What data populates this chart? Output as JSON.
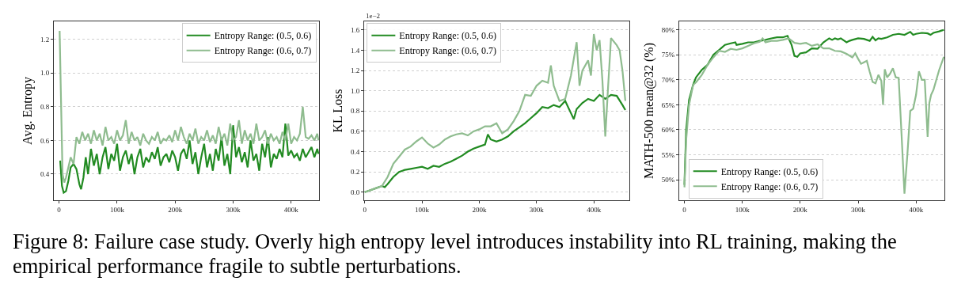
{
  "chart_data": [
    {
      "type": "line",
      "ylabel": "Avg. Entropy",
      "xlim": [
        -9,
        448
      ],
      "xticks": [
        {
          "value": 0,
          "label": "0"
        },
        {
          "value": 100,
          "label": "100k"
        },
        {
          "value": 200,
          "label": "200k"
        },
        {
          "value": 300,
          "label": "300k"
        },
        {
          "value": 400,
          "label": "400k"
        }
      ],
      "ylim": [
        0.245,
        1.306
      ],
      "yticks": [
        0.4,
        0.6,
        0.8,
        {
          "value": 1,
          "label": "1.0"
        },
        1.2
      ],
      "grid": "y",
      "legend": "top right",
      "series": [
        {
          "name": "Entropy Range: (0.5, 0.6)",
          "color": "#228b22",
          "x": [
            2,
            5,
            8,
            12,
            16,
            20,
            25,
            30,
            35,
            38,
            42,
            46,
            50,
            55,
            60,
            65,
            70,
            75,
            80,
            85,
            90,
            95,
            100,
            105,
            110,
            115,
            120,
            125,
            130,
            135,
            140,
            145,
            150,
            155,
            160,
            165,
            170,
            175,
            180,
            185,
            190,
            195,
            200,
            205,
            210,
            215,
            220,
            225,
            230,
            235,
            240,
            245,
            250,
            255,
            260,
            265,
            270,
            275,
            280,
            285,
            290,
            295,
            300,
            305,
            310,
            315,
            320,
            325,
            330,
            335,
            340,
            345,
            350,
            355,
            360,
            365,
            370,
            375,
            380,
            385,
            390,
            395,
            400,
            405,
            410,
            415,
            420,
            425,
            430,
            435,
            440,
            445,
            447
          ],
          "values": [
            0.48,
            0.33,
            0.29,
            0.3,
            0.36,
            0.44,
            0.46,
            0.43,
            0.34,
            0.31,
            0.38,
            0.5,
            0.4,
            0.55,
            0.45,
            0.52,
            0.4,
            0.5,
            0.56,
            0.43,
            0.52,
            0.48,
            0.58,
            0.42,
            0.5,
            0.54,
            0.46,
            0.52,
            0.4,
            0.5,
            0.55,
            0.44,
            0.5,
            0.47,
            0.53,
            0.49,
            0.56,
            0.45,
            0.5,
            0.52,
            0.47,
            0.54,
            0.5,
            0.42,
            0.52,
            0.55,
            0.49,
            0.6,
            0.46,
            0.53,
            0.4,
            0.5,
            0.58,
            0.44,
            0.52,
            0.42,
            0.55,
            0.48,
            0.62,
            0.45,
            0.52,
            0.4,
            0.69,
            0.5,
            0.56,
            0.47,
            0.53,
            0.44,
            0.6,
            0.48,
            0.52,
            0.42,
            0.58,
            0.5,
            0.62,
            0.44,
            0.52,
            0.49,
            0.55,
            0.5,
            0.7,
            0.51,
            0.54,
            0.5,
            0.52,
            0.48,
            0.55,
            0.5,
            0.53,
            0.56,
            0.5,
            0.55,
            0.52
          ]
        },
        {
          "name": "Entropy Range: (0.6, 0.7)",
          "color": "#8fbc8f",
          "x": [
            1,
            3,
            6,
            9,
            12,
            16,
            20,
            25,
            30,
            35,
            40,
            45,
            50,
            55,
            60,
            65,
            70,
            75,
            80,
            85,
            90,
            95,
            100,
            105,
            110,
            115,
            120,
            125,
            130,
            135,
            140,
            145,
            150,
            155,
            160,
            165,
            170,
            175,
            180,
            185,
            190,
            195,
            200,
            205,
            210,
            215,
            220,
            225,
            230,
            235,
            240,
            245,
            250,
            255,
            260,
            265,
            270,
            275,
            280,
            285,
            290,
            295,
            300,
            305,
            310,
            315,
            320,
            325,
            330,
            335,
            340,
            345,
            350,
            355,
            360,
            365,
            370,
            375,
            380,
            385,
            390,
            395,
            400,
            405,
            410,
            415,
            420,
            425,
            430,
            435,
            440,
            445,
            447
          ],
          "values": [
            1.25,
            0.9,
            0.4,
            0.35,
            0.38,
            0.44,
            0.5,
            0.46,
            0.62,
            0.58,
            0.65,
            0.6,
            0.64,
            0.58,
            0.66,
            0.6,
            0.64,
            0.57,
            0.68,
            0.6,
            0.62,
            0.58,
            0.66,
            0.6,
            0.63,
            0.72,
            0.58,
            0.65,
            0.6,
            0.62,
            0.57,
            0.64,
            0.6,
            0.58,
            0.62,
            0.6,
            0.65,
            0.58,
            0.61,
            0.6,
            0.63,
            0.59,
            0.66,
            0.6,
            0.68,
            0.62,
            0.58,
            0.64,
            0.6,
            0.67,
            0.58,
            0.62,
            0.6,
            0.66,
            0.59,
            0.63,
            0.58,
            0.68,
            0.6,
            0.64,
            0.57,
            0.7,
            0.6,
            0.62,
            0.72,
            0.58,
            0.66,
            0.6,
            0.64,
            0.58,
            0.7,
            0.6,
            0.62,
            0.66,
            0.58,
            0.64,
            0.6,
            0.62,
            0.58,
            0.65,
            0.6,
            0.7,
            0.58,
            0.62,
            0.6,
            0.64,
            0.8,
            0.62,
            0.61,
            0.63,
            0.6,
            0.64,
            0.6
          ]
        }
      ]
    },
    {
      "type": "line",
      "ylabel": "KL Loss",
      "annotations": [
        "1e−2"
      ],
      "xlim": [
        -1,
        462
      ],
      "xticks": [
        {
          "value": 0,
          "label": "0"
        },
        {
          "value": 100,
          "label": "100k"
        },
        {
          "value": 200,
          "label": "200k"
        },
        {
          "value": 300,
          "label": "300k"
        },
        {
          "value": 400,
          "label": "400k"
        }
      ],
      "ylim": [
        -0.08,
        1.685
      ],
      "yticks": [
        {
          "value": 0,
          "label": "0.0"
        },
        0.2,
        0.4,
        0.6,
        0.8,
        {
          "value": 1,
          "label": "1.0"
        },
        1.2,
        1.4,
        1.6
      ],
      "grid": "y",
      "legend": "top left",
      "series": [
        {
          "name": "Entropy Range: (0.5, 0.6)",
          "color": "#228b22",
          "x": [
            0,
            10,
            20,
            30,
            35,
            40,
            50,
            60,
            70,
            80,
            90,
            100,
            110,
            120,
            130,
            140,
            150,
            160,
            170,
            180,
            190,
            200,
            210,
            215,
            220,
            230,
            240,
            250,
            260,
            270,
            280,
            290,
            300,
            310,
            320,
            330,
            340,
            350,
            360,
            365,
            370,
            380,
            390,
            400,
            410,
            420,
            430,
            440,
            450,
            455
          ],
          "values": [
            0.0,
            0.02,
            0.04,
            0.06,
            0.05,
            0.08,
            0.15,
            0.2,
            0.22,
            0.23,
            0.24,
            0.25,
            0.23,
            0.26,
            0.25,
            0.28,
            0.3,
            0.33,
            0.36,
            0.4,
            0.43,
            0.45,
            0.47,
            0.57,
            0.52,
            0.5,
            0.52,
            0.55,
            0.6,
            0.64,
            0.68,
            0.73,
            0.78,
            0.84,
            0.83,
            0.86,
            0.84,
            0.9,
            0.78,
            0.72,
            0.82,
            0.88,
            0.92,
            0.9,
            0.96,
            0.92,
            0.96,
            0.95,
            0.86,
            0.81
          ]
        },
        {
          "name": "Entropy Range: (0.6, 0.7)",
          "color": "#8fbc8f",
          "x": [
            0,
            10,
            20,
            30,
            40,
            50,
            60,
            70,
            80,
            90,
            100,
            110,
            120,
            130,
            140,
            150,
            160,
            170,
            180,
            190,
            200,
            210,
            220,
            230,
            240,
            250,
            260,
            270,
            280,
            290,
            300,
            310,
            320,
            325,
            330,
            340,
            350,
            360,
            370,
            375,
            380,
            390,
            395,
            400,
            405,
            410,
            415,
            420,
            425,
            430,
            440,
            445,
            450,
            455
          ],
          "values": [
            0.0,
            0.02,
            0.04,
            0.06,
            0.15,
            0.28,
            0.35,
            0.42,
            0.45,
            0.5,
            0.54,
            0.48,
            0.44,
            0.47,
            0.52,
            0.55,
            0.57,
            0.58,
            0.56,
            0.6,
            0.62,
            0.65,
            0.65,
            0.68,
            0.58,
            0.62,
            0.7,
            0.8,
            0.96,
            0.95,
            1.05,
            1.1,
            1.08,
            1.25,
            1.05,
            0.9,
            0.92,
            1.15,
            1.48,
            1.05,
            1.2,
            1.3,
            1.15,
            1.56,
            1.4,
            1.5,
            1.1,
            0.55,
            1.05,
            1.52,
            1.45,
            1.4,
            1.2,
            0.9
          ]
        }
      ]
    },
    {
      "type": "line",
      "ylabel": "MATH-500 mean@32 (%)",
      "xlim": [
        -9,
        449
      ],
      "xticks": [
        {
          "value": 0,
          "label": "0"
        },
        {
          "value": 100,
          "label": "100k"
        },
        {
          "value": 200,
          "label": "200k"
        },
        {
          "value": 300,
          "label": "300k"
        },
        {
          "value": 400,
          "label": "400k"
        }
      ],
      "ylim": [
        45.9,
        81.7
      ],
      "yticks": [
        {
          "value": 50,
          "label": "50%"
        },
        {
          "value": 55,
          "label": "55%"
        },
        {
          "value": 60,
          "label": "60%"
        },
        {
          "value": 65,
          "label": "65%"
        },
        {
          "value": 70,
          "label": "70%"
        },
        {
          "value": 75,
          "label": "75%"
        },
        {
          "value": 80,
          "label": "80%"
        }
      ],
      "grid": "y",
      "legend": "bottom left",
      "series": [
        {
          "name": "Entropy Range: (0.5, 0.6)",
          "color": "#228b22",
          "x": [
            0,
            3,
            8,
            15,
            20,
            30,
            40,
            50,
            60,
            65,
            70,
            80,
            88,
            90,
            100,
            110,
            120,
            130,
            140,
            150,
            160,
            170,
            178,
            185,
            190,
            195,
            200,
            210,
            220,
            230,
            240,
            250,
            255,
            260,
            265,
            270,
            280,
            285,
            290,
            300,
            310,
            320,
            325,
            330,
            335,
            340,
            350,
            360,
            370,
            380,
            390,
            395,
            400,
            410,
            420,
            425,
            430,
            440,
            448
          ],
          "values": [
            49,
            60,
            66,
            69,
            70.5,
            72,
            73,
            75,
            76,
            76.5,
            77,
            77.3,
            77.5,
            77,
            77.2,
            77.5,
            77.5,
            77.8,
            78,
            78.3,
            78.5,
            78.5,
            78.8,
            77,
            74.8,
            74.6,
            75.3,
            75.5,
            76.3,
            76.2,
            77.5,
            78.3,
            78.0,
            78.3,
            78.1,
            78.3,
            77.5,
            77.8,
            78.0,
            78.3,
            78.2,
            77.8,
            78.6,
            77.9,
            78.3,
            78.2,
            78.5,
            79,
            79.2,
            79,
            79.6,
            79,
            79.2,
            79.4,
            79.3,
            79,
            79.4,
            79.7,
            80
          ]
        },
        {
          "name": "Entropy Range: (0.6, 0.7)",
          "color": "#8fbc8f",
          "x": [
            0,
            3,
            8,
            15,
            20,
            30,
            40,
            50,
            60,
            70,
            80,
            90,
            100,
            110,
            120,
            130,
            135,
            140,
            150,
            160,
            170,
            180,
            190,
            200,
            210,
            220,
            230,
            240,
            250,
            260,
            270,
            280,
            290,
            295,
            300,
            305,
            310,
            315,
            320,
            325,
            330,
            335,
            340,
            343,
            346,
            350,
            355,
            360,
            365,
            370,
            375,
            380,
            385,
            390,
            395,
            400,
            405,
            410,
            415,
            420,
            423,
            426,
            430,
            440,
            448
          ],
          "values": [
            48.5,
            58,
            65,
            69,
            69.5,
            71,
            73,
            74.5,
            75.8,
            75.6,
            76.2,
            76.0,
            76.3,
            76.8,
            77.3,
            77.6,
            78.3,
            77.5,
            77.8,
            77.8,
            78.0,
            78.3,
            77.4,
            77.2,
            77.4,
            76.8,
            77.1,
            76.3,
            76.3,
            75.8,
            75.7,
            75.2,
            74.5,
            75.3,
            74.2,
            73.2,
            73.5,
            73.8,
            71.6,
            69.6,
            69.3,
            71,
            69.8,
            65,
            72.1,
            70.5,
            71.2,
            72.3,
            70.5,
            70.4,
            59,
            47.2,
            55,
            63.8,
            64.2,
            67,
            71.7,
            70,
            70,
            58.6,
            65.4,
            67,
            68,
            72,
            74.6
          ]
        }
      ]
    },
    {
      "type": "other",
      "annotations": [
        "Figure 8: Failure case study. Overly high entropy level introduces instability into RL training, making the empirical performance fragile to subtle perturbations."
      ]
    }
  ]
}
